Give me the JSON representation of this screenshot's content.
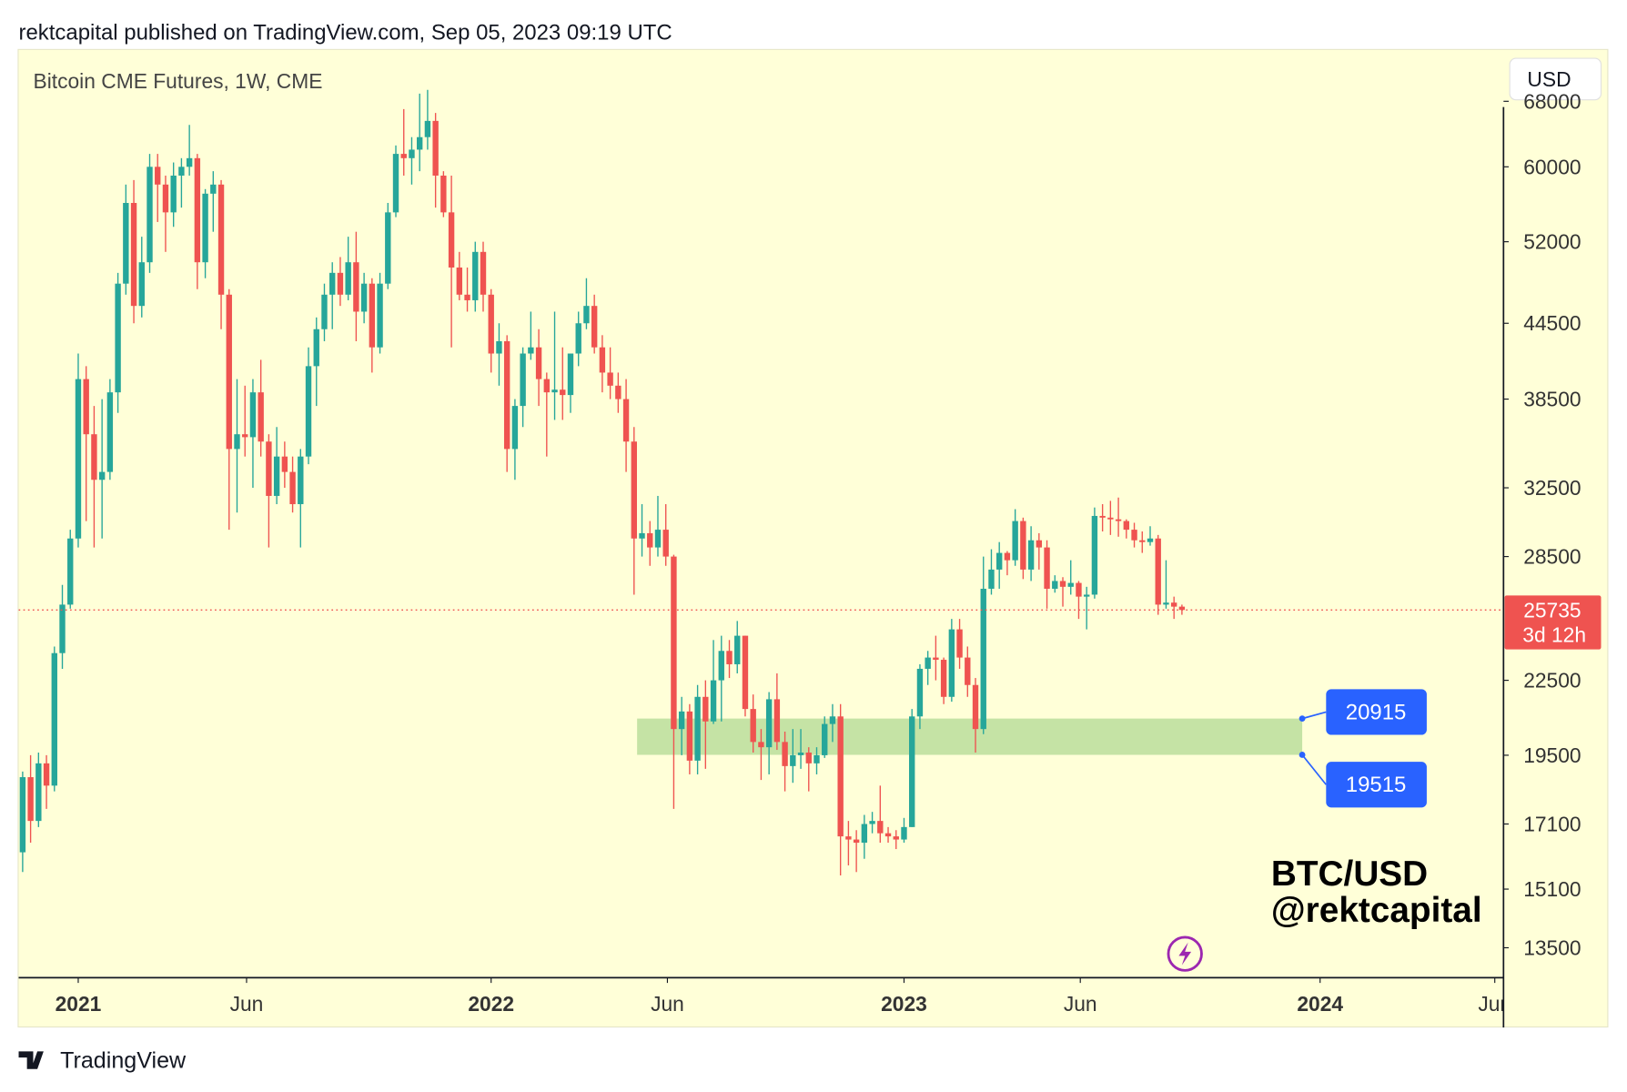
{
  "header": "rektcapital published on TradingView.com, Sep 05, 2023 09:19 UTC",
  "footer": "TradingView",
  "chart_data": {
    "type": "candlestick",
    "title": "Bitcoin CME Futures, 1W, CME",
    "currency": "USD",
    "watermark": [
      "BTC/USD",
      "@rektcapital"
    ],
    "up_color": "#26a69a",
    "down_color": "#ef5350",
    "log_scale": true,
    "xlim": [
      -0.5,
      186.5
    ],
    "xticks": [
      {
        "value": 7,
        "label": "2021"
      },
      {
        "value": 28.2,
        "label": "Jun"
      },
      {
        "value": 59,
        "label": "2022"
      },
      {
        "value": 81.2,
        "label": "Jun"
      },
      {
        "value": 111,
        "label": "2023"
      },
      {
        "value": 133.2,
        "label": "Jun"
      },
      {
        "value": 163.4,
        "label": "2024"
      },
      {
        "value": 185.4,
        "label": "Jun"
      }
    ],
    "ylim": [
      12750,
      75000
    ],
    "yticks": [
      68000,
      60000,
      52000,
      44500,
      38500,
      32500,
      28500,
      22500,
      19500,
      17100,
      15100,
      13500
    ],
    "last_price": 25735,
    "countdown": "3d 12h",
    "zone": {
      "low": 19515,
      "high": 20915,
      "color": "#c5e3a5"
    },
    "ohlc": [
      [
        16200,
        18900,
        15600,
        18700
      ],
      [
        18700,
        19500,
        16500,
        17200
      ],
      [
        17200,
        19600,
        17000,
        19200
      ],
      [
        19200,
        19500,
        17600,
        18400
      ],
      [
        18400,
        24000,
        18200,
        23700
      ],
      [
        23700,
        27000,
        23000,
        26000
      ],
      [
        26000,
        30000,
        25800,
        29500
      ],
      [
        29500,
        42000,
        29000,
        40000
      ],
      [
        40000,
        41000,
        30500,
        36000
      ],
      [
        36000,
        38000,
        29000,
        33000
      ],
      [
        33000,
        38500,
        29500,
        33500
      ],
      [
        33500,
        40000,
        33000,
        39000
      ],
      [
        39000,
        49000,
        37500,
        48000
      ],
      [
        48000,
        58000,
        47000,
        56000
      ],
      [
        56000,
        58500,
        44500,
        46000
      ],
      [
        46000,
        52500,
        45000,
        50000
      ],
      [
        50000,
        61500,
        49000,
        60000
      ],
      [
        60000,
        61500,
        54000,
        58000
      ],
      [
        58000,
        59000,
        51000,
        55000
      ],
      [
        55000,
        60500,
        53500,
        59000
      ],
      [
        59000,
        61000,
        55500,
        60000
      ],
      [
        60000,
        65000,
        59000,
        61000
      ],
      [
        61000,
        61500,
        47500,
        50000
      ],
      [
        50000,
        57500,
        48500,
        57000
      ],
      [
        57000,
        59500,
        53000,
        58000
      ],
      [
        58000,
        58500,
        44000,
        47000
      ],
      [
        47000,
        47500,
        30000,
        35000
      ],
      [
        35000,
        40000,
        31000,
        36000
      ],
      [
        36000,
        39500,
        34500,
        35800
      ],
      [
        35800,
        40000,
        32500,
        39000
      ],
      [
        39000,
        41500,
        34500,
        35500
      ],
      [
        35500,
        36000,
        29000,
        32000
      ],
      [
        32000,
        36500,
        31500,
        34500
      ],
      [
        34500,
        35500,
        32500,
        33500
      ],
      [
        33500,
        34500,
        31000,
        31500
      ],
      [
        31500,
        35000,
        29000,
        34500
      ],
      [
        34500,
        42500,
        34000,
        41000
      ],
      [
        41000,
        45000,
        38000,
        44000
      ],
      [
        44000,
        48000,
        43000,
        47000
      ],
      [
        47000,
        50000,
        44000,
        49000
      ],
      [
        49000,
        50500,
        46000,
        47000
      ],
      [
        47000,
        52500,
        46500,
        50000
      ],
      [
        50000,
        53000,
        43000,
        45500
      ],
      [
        45500,
        49000,
        44500,
        48000
      ],
      [
        48000,
        48500,
        40500,
        42500
      ],
      [
        42500,
        49000,
        42000,
        48000
      ],
      [
        48000,
        56000,
        47500,
        55000
      ],
      [
        55000,
        62500,
        54500,
        61500
      ],
      [
        61500,
        67000,
        59000,
        61000
      ],
      [
        61000,
        63500,
        58000,
        62000
      ],
      [
        62000,
        69000,
        59500,
        63500
      ],
      [
        63500,
        69500,
        62000,
        65500
      ],
      [
        65500,
        66500,
        55500,
        59000
      ],
      [
        59000,
        59500,
        54500,
        55000
      ],
      [
        55000,
        59000,
        42500,
        49500
      ],
      [
        49500,
        51000,
        46500,
        47000
      ],
      [
        47000,
        49500,
        45500,
        46500
      ],
      [
        46500,
        52000,
        45500,
        51000
      ],
      [
        51000,
        52000,
        45500,
        47000
      ],
      [
        47000,
        47500,
        40500,
        42000
      ],
      [
        42000,
        44500,
        39500,
        43000
      ],
      [
        43000,
        43500,
        33500,
        35000
      ],
      [
        35000,
        38500,
        33000,
        38000
      ],
      [
        38000,
        42500,
        36500,
        42000
      ],
      [
        42000,
        45500,
        41500,
        42500
      ],
      [
        42500,
        44000,
        38000,
        40000
      ],
      [
        40000,
        40500,
        34500,
        39000
      ],
      [
        39000,
        45500,
        37000,
        39200
      ],
      [
        39200,
        42500,
        37000,
        38800
      ],
      [
        38800,
        42000,
        37500,
        42000
      ],
      [
        42000,
        45500,
        41000,
        44500
      ],
      [
        44500,
        48500,
        44000,
        46000
      ],
      [
        46000,
        47000,
        42000,
        42500
      ],
      [
        42500,
        43500,
        39000,
        40500
      ],
      [
        40500,
        42500,
        38500,
        39500
      ],
      [
        39500,
        40500,
        37500,
        38500
      ],
      [
        38500,
        40000,
        33500,
        35500
      ],
      [
        35500,
        36500,
        26500,
        29500
      ],
      [
        29500,
        31500,
        28500,
        29800
      ],
      [
        29800,
        30500,
        28000,
        29000
      ],
      [
        29000,
        32000,
        28500,
        30000
      ],
      [
        30000,
        31500,
        28000,
        28500
      ],
      [
        28500,
        28600,
        17600,
        20500
      ],
      [
        20500,
        21800,
        19500,
        21200
      ],
      [
        21200,
        21500,
        18800,
        19300
      ],
      [
        19300,
        22300,
        18800,
        21800
      ],
      [
        21800,
        22500,
        19000,
        20800
      ],
      [
        20800,
        24300,
        20700,
        22500
      ],
      [
        22500,
        24500,
        20800,
        23800
      ],
      [
        23800,
        24300,
        22600,
        23200
      ],
      [
        23200,
        25200,
        22800,
        24500
      ],
      [
        24500,
        24500,
        21000,
        21300
      ],
      [
        21300,
        21900,
        19600,
        20000
      ],
      [
        20000,
        20500,
        18600,
        19800
      ],
      [
        19800,
        22000,
        18800,
        21700
      ],
      [
        21700,
        22800,
        19700,
        20000
      ],
      [
        20000,
        20400,
        18200,
        19100
      ],
      [
        19100,
        20500,
        18500,
        19500
      ],
      [
        19500,
        20500,
        19000,
        19600
      ],
      [
        19600,
        19800,
        18200,
        19200
      ],
      [
        19200,
        19800,
        18800,
        19500
      ],
      [
        19500,
        21000,
        19400,
        20700
      ],
      [
        20700,
        21500,
        20000,
        21000
      ],
      [
        21000,
        21500,
        15500,
        16700
      ],
      [
        16700,
        17200,
        15800,
        16600
      ],
      [
        16600,
        16900,
        15600,
        16500
      ],
      [
        16500,
        17400,
        16000,
        17100
      ],
      [
        17100,
        17500,
        16800,
        17200
      ],
      [
        17200,
        18400,
        16500,
        16800
      ],
      [
        16800,
        17000,
        16500,
        16700
      ],
      [
        16700,
        16900,
        16300,
        16600
      ],
      [
        16600,
        17300,
        16500,
        17000
      ],
      [
        17000,
        21300,
        17000,
        21000
      ],
      [
        21000,
        23200,
        20500,
        23000
      ],
      [
        23000,
        23800,
        22300,
        23500
      ],
      [
        23500,
        24500,
        22500,
        23400
      ],
      [
        23400,
        23500,
        21500,
        21800
      ],
      [
        21800,
        25300,
        21600,
        24800
      ],
      [
        24800,
        25300,
        23000,
        23500
      ],
      [
        23500,
        24000,
        21800,
        22300
      ],
      [
        22300,
        22600,
        19600,
        20500
      ],
      [
        20500,
        28500,
        20300,
        26800
      ],
      [
        26800,
        28900,
        26500,
        27800
      ],
      [
        27800,
        29300,
        26800,
        28700
      ],
      [
        28700,
        28800,
        27500,
        28300
      ],
      [
        28300,
        31200,
        28000,
        30500
      ],
      [
        30500,
        30700,
        27300,
        27800
      ],
      [
        27800,
        30200,
        27200,
        29400
      ],
      [
        29400,
        29800,
        27800,
        29000
      ],
      [
        29000,
        29400,
        25800,
        26800
      ],
      [
        26800,
        27500,
        26600,
        27200
      ],
      [
        27200,
        27400,
        25900,
        26900
      ],
      [
        26900,
        28300,
        26500,
        27100
      ],
      [
        27100,
        27200,
        25300,
        26400
      ],
      [
        26400,
        26900,
        24800,
        26500
      ],
      [
        26500,
        31300,
        26300,
        30800
      ],
      [
        30800,
        31500,
        29900,
        30700
      ],
      [
        30700,
        31700,
        29700,
        30600
      ],
      [
        30600,
        31900,
        29600,
        30500
      ],
      [
        30500,
        30600,
        29500,
        30000
      ],
      [
        30000,
        30400,
        29000,
        29400
      ],
      [
        29400,
        29900,
        28700,
        29300
      ],
      [
        29300,
        30200,
        29100,
        29500
      ],
      [
        29500,
        29700,
        25500,
        26000
      ],
      [
        26000,
        28300,
        25800,
        26100
      ],
      [
        26100,
        26400,
        25300,
        25900
      ],
      [
        25900,
        26000,
        25500,
        25735
      ]
    ]
  }
}
